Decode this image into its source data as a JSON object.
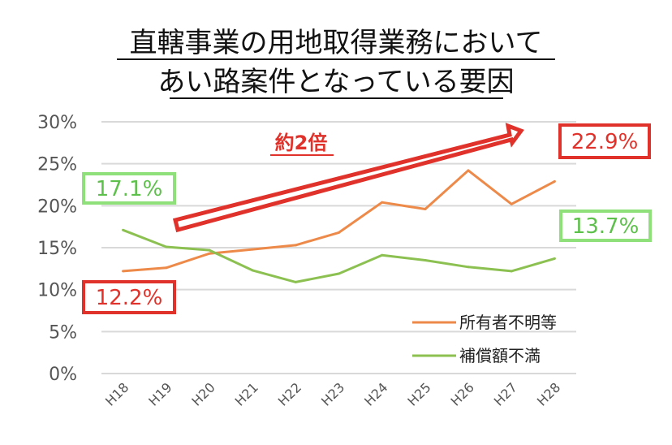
{
  "chart_data": {
    "type": "line",
    "title_lines": [
      "直轄事業の用地取得業務において",
      "あい路案件となっている要因"
    ],
    "categories": [
      "H18",
      "H19",
      "H20",
      "H21",
      "H22",
      "H23",
      "H24",
      "H25",
      "H26",
      "H27",
      "H28"
    ],
    "series": [
      {
        "name": "所有者不明等",
        "color": "#ed8a4a",
        "values": [
          12.2,
          12.6,
          14.3,
          14.8,
          15.3,
          16.8,
          20.4,
          19.6,
          24.2,
          20.2,
          22.9
        ]
      },
      {
        "name": "補償額不満",
        "color": "#8cc152",
        "values": [
          17.1,
          15.1,
          14.7,
          12.3,
          10.9,
          11.9,
          14.1,
          13.5,
          12.7,
          12.2,
          13.7
        ]
      }
    ],
    "ylim": [
      0,
      30
    ],
    "yticks": [
      "0%",
      "5%",
      "10%",
      "15%",
      "20%",
      "25%",
      "30%"
    ],
    "grid": true,
    "legend_position": "bottom-right",
    "annotations": {
      "start_orange": "12.2%",
      "end_orange": "22.9%",
      "start_green": "17.1%",
      "end_green": "13.7%",
      "arrow_label": "約2倍"
    },
    "colors": {
      "red_box": "#e0322a",
      "green_box": "#8fe07a",
      "axis_text": "#555555",
      "grid": "#d9d9d9"
    }
  }
}
